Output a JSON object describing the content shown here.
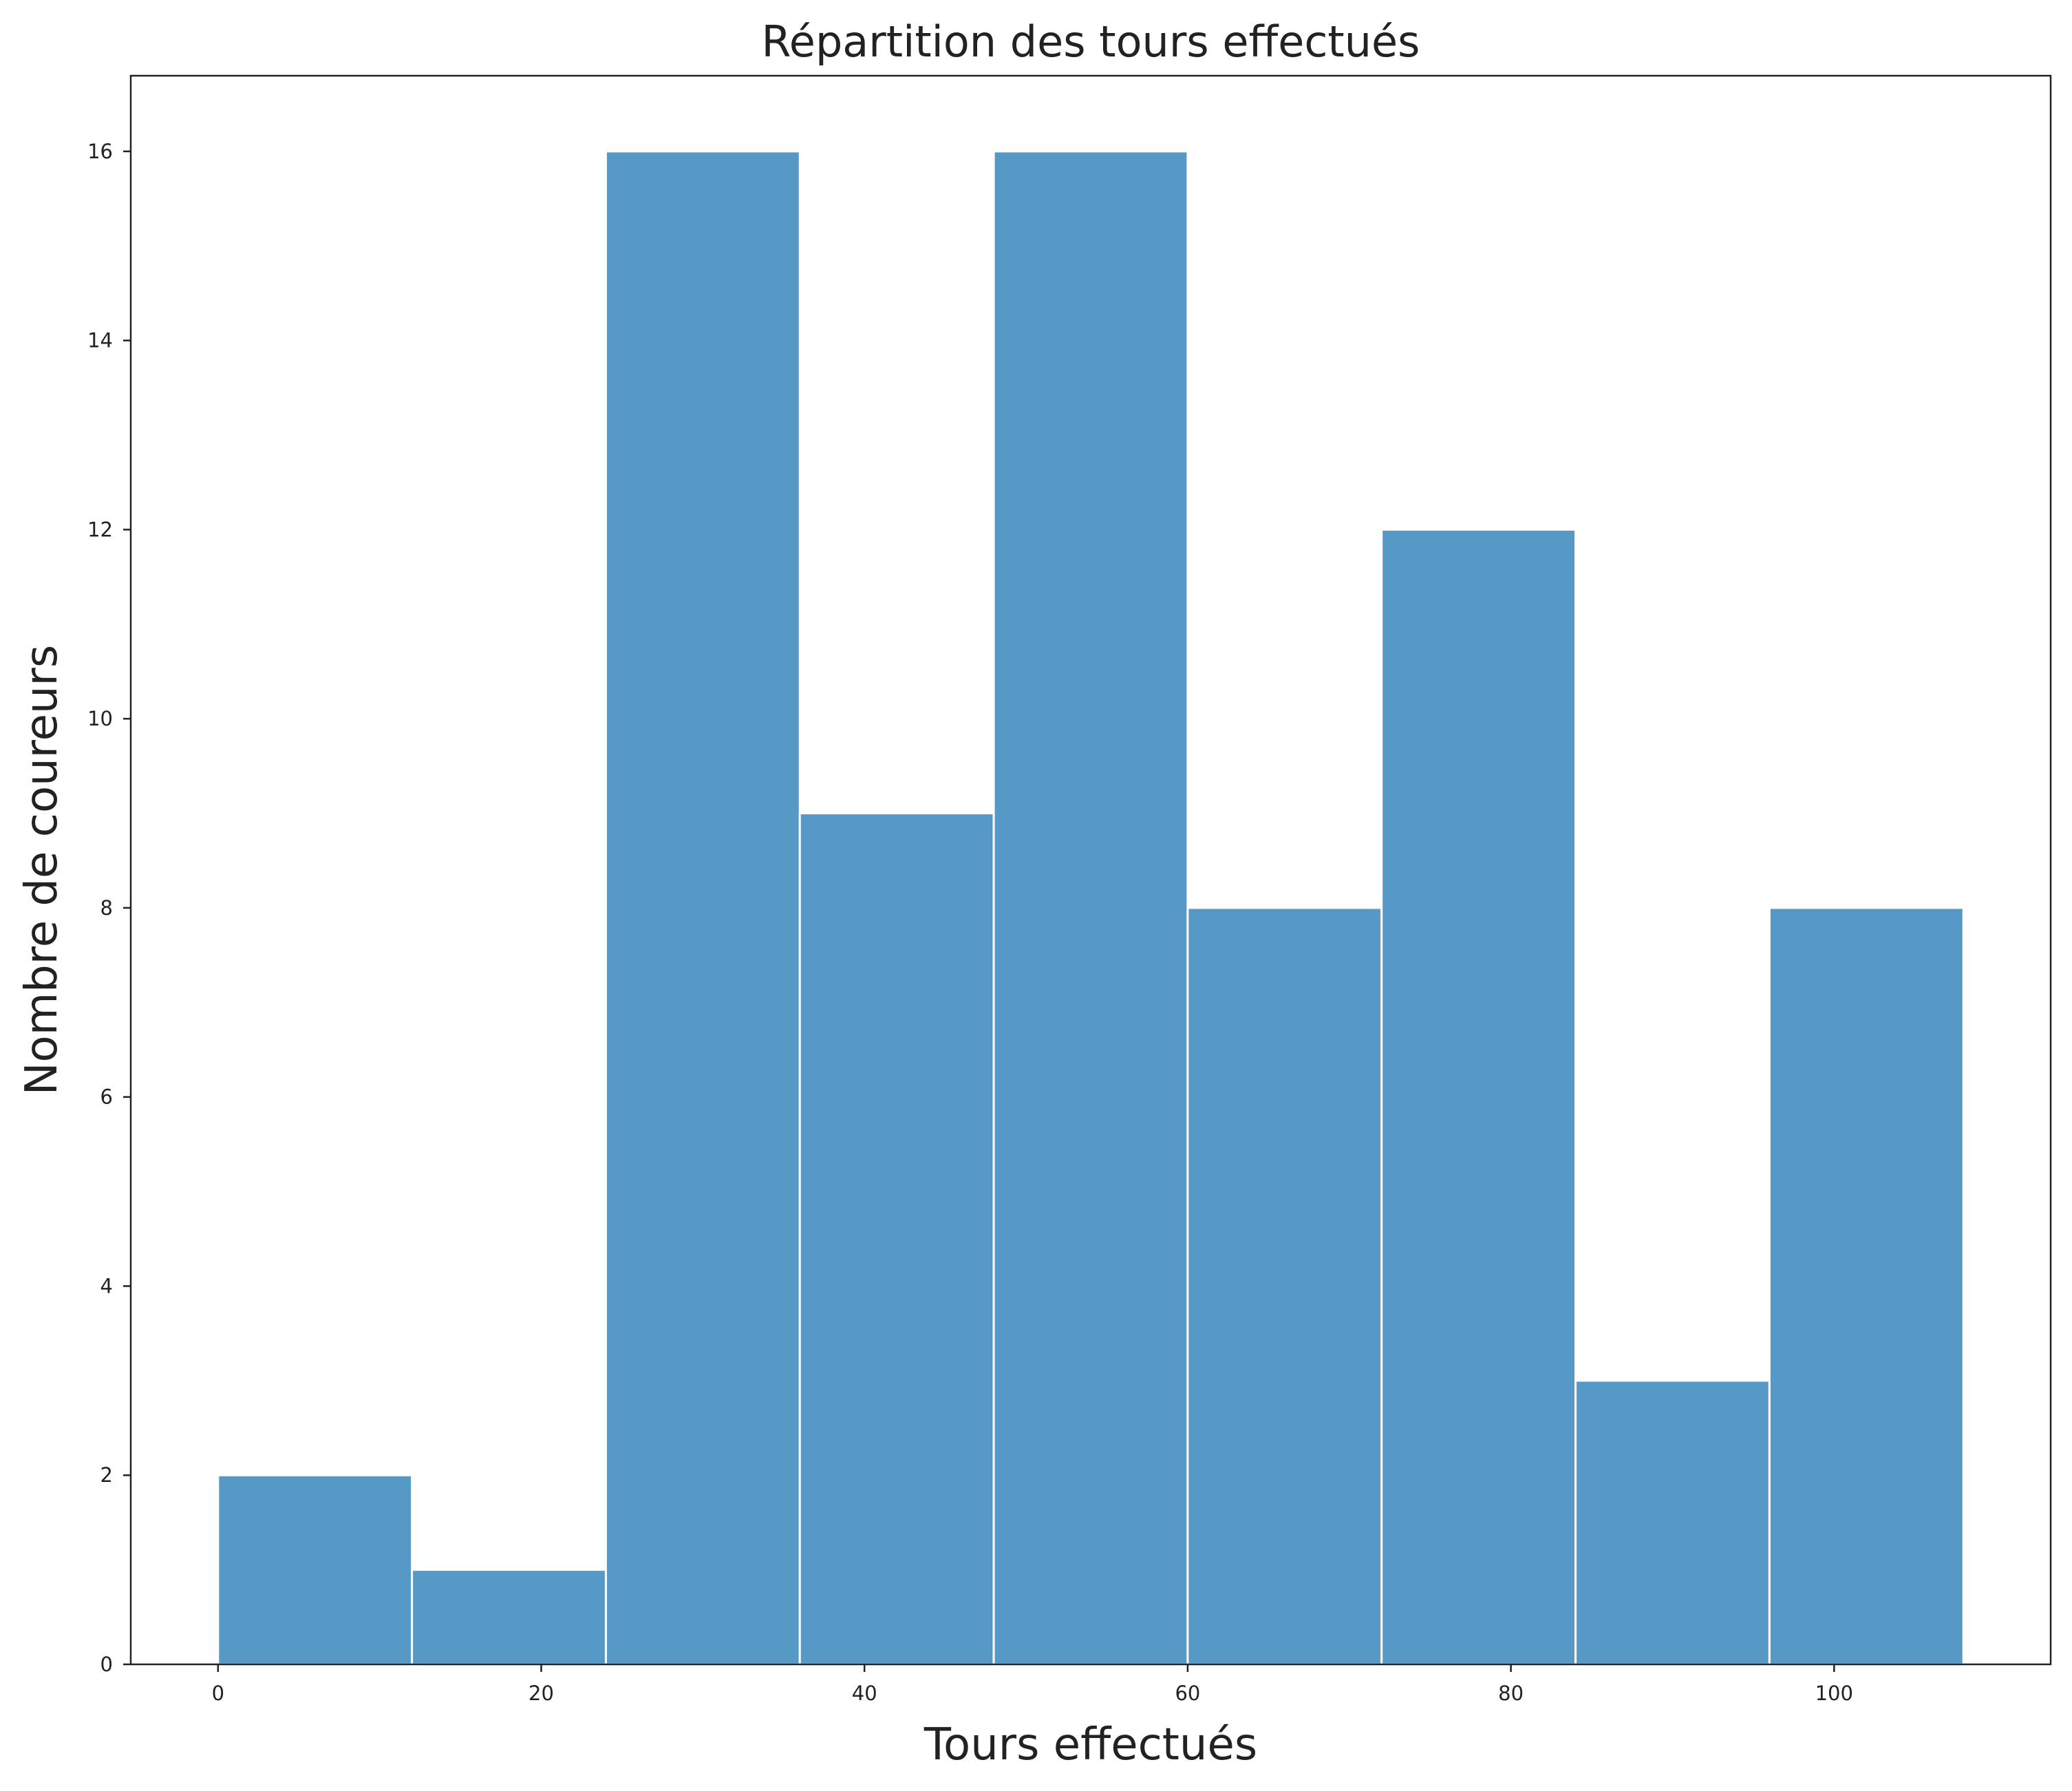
{
  "chart_data": {
    "type": "bar",
    "title": "Répartition des tours effectués",
    "xlabel": "Tours effectués",
    "ylabel": "Nombre de coureurs",
    "bins": [
      {
        "start": 0,
        "end": 12,
        "count": 2
      },
      {
        "start": 12,
        "end": 24,
        "count": 1
      },
      {
        "start": 24,
        "end": 36,
        "count": 16
      },
      {
        "start": 36,
        "end": 48,
        "count": 9
      },
      {
        "start": 48,
        "end": 60,
        "count": 16
      },
      {
        "start": 60,
        "end": 72,
        "count": 8
      },
      {
        "start": 72,
        "end": 84,
        "count": 12
      },
      {
        "start": 84,
        "end": 96,
        "count": 3
      },
      {
        "start": 96,
        "end": 108,
        "count": 8
      }
    ],
    "xlim": [
      -5.4,
      113.4
    ],
    "ylim": [
      0,
      16.8
    ],
    "xticks": [
      0,
      20,
      40,
      60,
      80,
      100
    ],
    "yticks": [
      0,
      2,
      4,
      6,
      8,
      10,
      12,
      14,
      16
    ],
    "grid": false,
    "bar_color": "#5799c6",
    "bar_edge_color": "#ffffff"
  }
}
